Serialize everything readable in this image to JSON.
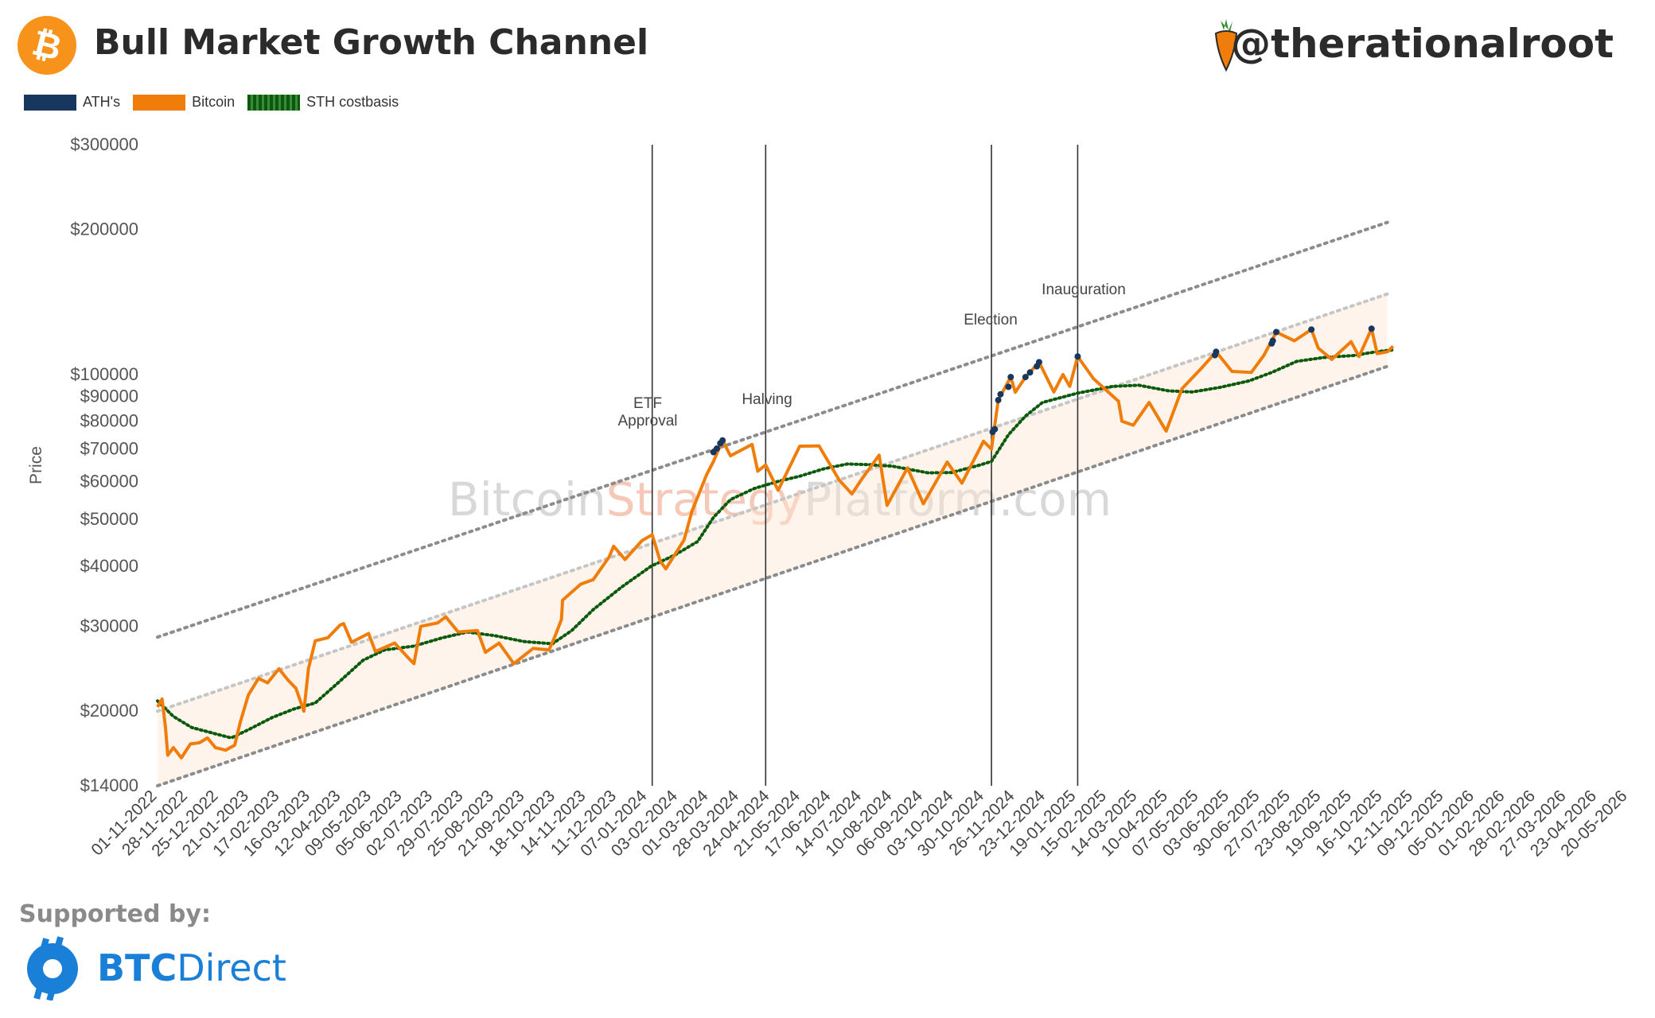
{
  "header": {
    "title": "Bull Market Growth Channel",
    "handle": "@therationalroot",
    "bitcoin_icon": "bitcoin-icon",
    "carrot_icon": "carrot-icon"
  },
  "legend": {
    "items": [
      {
        "label": "ATH's",
        "color": "#17375e",
        "style": "solid"
      },
      {
        "label": "Bitcoin",
        "color": "#f07d0a",
        "style": "solid"
      },
      {
        "label": "STH costbasis",
        "color": "#0b5a0b",
        "style": "dotted"
      }
    ]
  },
  "watermark": {
    "part1": "Bitcoin",
    "part2": "Strategy",
    "part3": "Platform.com"
  },
  "footer": {
    "supported_label": "Supported by:",
    "brand_bold": "BTC",
    "brand_rest": "Direct",
    "brand_icon": "btcdirect-icon",
    "brand_color": "#1a7fd6"
  },
  "chart_data": {
    "type": "line",
    "title": "Bull Market Growth Channel",
    "ylabel": "Price",
    "yscale": "log",
    "ylim": [
      14000,
      300000
    ],
    "xlim": [
      "2022-11-01",
      "2026-05-20"
    ],
    "y_ticks": [
      {
        "value": 14000,
        "label": "$14000"
      },
      {
        "value": 20000,
        "label": "$20000"
      },
      {
        "value": 30000,
        "label": "$30000"
      },
      {
        "value": 40000,
        "label": "$40000"
      },
      {
        "value": 50000,
        "label": "$50000"
      },
      {
        "value": 60000,
        "label": "$60000"
      },
      {
        "value": 70000,
        "label": "$70000"
      },
      {
        "value": 80000,
        "label": "$80000"
      },
      {
        "value": 90000,
        "label": "$90000"
      },
      {
        "value": 100000,
        "label": "$100000"
      },
      {
        "value": 200000,
        "label": "$200000"
      },
      {
        "value": 300000,
        "label": "$300000"
      }
    ],
    "x_ticks": [
      "2022-11-01",
      "2022-11-28",
      "2022-12-25",
      "2023-01-21",
      "2023-02-17",
      "2023-03-16",
      "2023-04-12",
      "2023-05-09",
      "2023-06-05",
      "2023-07-02",
      "2023-07-29",
      "2023-08-25",
      "2023-09-21",
      "2023-10-18",
      "2023-11-14",
      "2023-12-11",
      "2024-01-07",
      "2024-02-03",
      "2024-03-01",
      "2024-03-28",
      "2024-04-24",
      "2024-05-21",
      "2024-06-17",
      "2024-07-14",
      "2024-08-10",
      "2024-09-06",
      "2024-10-03",
      "2024-10-30",
      "2024-11-26",
      "2024-12-23",
      "2025-01-19",
      "2025-02-15",
      "2025-03-14",
      "2025-04-10",
      "2025-05-07",
      "2025-06-03",
      "2025-06-30",
      "2025-07-27",
      "2025-08-23",
      "2025-09-19",
      "2025-10-16",
      "2025-11-12",
      "2025-12-09",
      "2026-01-05",
      "2026-02-01",
      "2026-02-28",
      "2026-03-27",
      "2026-04-23",
      "2026-05-20"
    ],
    "x_tick_labels": [
      "01-11-2022",
      "28-11-2022",
      "25-12-2022",
      "21-01-2023",
      "17-02-2023",
      "16-03-2023",
      "12-04-2023",
      "09-05-2023",
      "05-06-2023",
      "02-07-2023",
      "29-07-2023",
      "25-08-2023",
      "21-09-2023",
      "18-10-2023",
      "14-11-2023",
      "11-12-2023",
      "07-01-2024",
      "03-02-2024",
      "01-03-2024",
      "28-03-2024",
      "24-04-2024",
      "21-05-2024",
      "17-06-2024",
      "14-07-2024",
      "10-08-2024",
      "06-09-2024",
      "03-10-2024",
      "30-10-2024",
      "26-11-2024",
      "23-12-2024",
      "19-01-2025",
      "15-02-2025",
      "14-03-2025",
      "10-04-2025",
      "07-05-2025",
      "03-06-2025",
      "30-06-2025",
      "27-07-2025",
      "23-08-2025",
      "19-09-2025",
      "16-10-2025",
      "12-11-2025",
      "09-12-2025",
      "05-01-2026",
      "01-02-2026",
      "28-02-2026",
      "27-03-2026",
      "23-04-2026",
      "20-05-2026"
    ],
    "events": [
      {
        "date": "2024-01-11",
        "label": "ETF\nApproval"
      },
      {
        "date": "2024-04-20",
        "label": "Halving"
      },
      {
        "date": "2024-11-05",
        "label": "Election"
      },
      {
        "date": "2025-01-20",
        "label": "Inauguration"
      }
    ],
    "channel": {
      "start": "2022-11-01",
      "end": "2025-10-20",
      "upper": [
        28500,
        207000
      ],
      "middle": [
        20000,
        147000
      ],
      "lower": [
        14000,
        104000
      ]
    },
    "series": [
      {
        "name": "Bitcoin",
        "color": "#f07d0a",
        "points": [
          [
            "2022-11-01",
            20400
          ],
          [
            "2022-11-05",
            21200
          ],
          [
            "2022-11-08",
            18500
          ],
          [
            "2022-11-10",
            16200
          ],
          [
            "2022-11-15",
            16800
          ],
          [
            "2022-11-22",
            16000
          ],
          [
            "2022-11-30",
            17100
          ],
          [
            "2022-12-08",
            17200
          ],
          [
            "2022-12-15",
            17600
          ],
          [
            "2022-12-22",
            16800
          ],
          [
            "2022-12-31",
            16600
          ],
          [
            "2023-01-08",
            17000
          ],
          [
            "2023-01-13",
            19000
          ],
          [
            "2023-01-20",
            21600
          ],
          [
            "2023-01-29",
            23400
          ],
          [
            "2023-02-06",
            22900
          ],
          [
            "2023-02-16",
            24500
          ],
          [
            "2023-02-24",
            23200
          ],
          [
            "2023-03-03",
            22300
          ],
          [
            "2023-03-10",
            20000
          ],
          [
            "2023-03-14",
            24500
          ],
          [
            "2023-03-20",
            28000
          ],
          [
            "2023-03-31",
            28400
          ],
          [
            "2023-04-11",
            30200
          ],
          [
            "2023-04-14",
            30400
          ],
          [
            "2023-04-21",
            27800
          ],
          [
            "2023-05-06",
            29000
          ],
          [
            "2023-05-12",
            26600
          ],
          [
            "2023-05-29",
            27700
          ],
          [
            "2023-06-10",
            25800
          ],
          [
            "2023-06-15",
            25100
          ],
          [
            "2023-06-21",
            30000
          ],
          [
            "2023-07-06",
            30500
          ],
          [
            "2023-07-13",
            31400
          ],
          [
            "2023-07-24",
            29200
          ],
          [
            "2023-08-10",
            29400
          ],
          [
            "2023-08-17",
            26500
          ],
          [
            "2023-08-29",
            27700
          ],
          [
            "2023-09-11",
            25100
          ],
          [
            "2023-09-28",
            27000
          ],
          [
            "2023-10-12",
            26800
          ],
          [
            "2023-10-17",
            28500
          ],
          [
            "2023-10-23",
            31000
          ],
          [
            "2023-10-24",
            34000
          ],
          [
            "2023-11-09",
            36700
          ],
          [
            "2023-11-20",
            37500
          ],
          [
            "2023-12-04",
            41800
          ],
          [
            "2023-12-08",
            44000
          ],
          [
            "2023-12-18",
            41300
          ],
          [
            "2024-01-02",
            45200
          ],
          [
            "2024-01-11",
            46500
          ],
          [
            "2024-01-18",
            41000
          ],
          [
            "2024-01-23",
            39500
          ],
          [
            "2024-02-08",
            45300
          ],
          [
            "2024-02-15",
            52000
          ],
          [
            "2024-02-28",
            62000
          ],
          [
            "2024-03-05",
            66000
          ],
          [
            "2024-03-13",
            73000
          ],
          [
            "2024-03-20",
            67800
          ],
          [
            "2024-04-08",
            71600
          ],
          [
            "2024-04-13",
            63000
          ],
          [
            "2024-04-20",
            64900
          ],
          [
            "2024-05-01",
            57500
          ],
          [
            "2024-05-20",
            71000
          ],
          [
            "2024-06-06",
            71100
          ],
          [
            "2024-06-24",
            60300
          ],
          [
            "2024-07-05",
            56500
          ],
          [
            "2024-07-14",
            60800
          ],
          [
            "2024-07-29",
            68000
          ],
          [
            "2024-08-05",
            53500
          ],
          [
            "2024-08-23",
            64000
          ],
          [
            "2024-09-06",
            53900
          ],
          [
            "2024-09-27",
            65800
          ],
          [
            "2024-10-10",
            59500
          ],
          [
            "2024-10-29",
            72700
          ],
          [
            "2024-11-05",
            70000
          ],
          [
            "2024-11-11",
            88500
          ],
          [
            "2024-11-22",
            98800
          ],
          [
            "2024-11-26",
            91900
          ],
          [
            "2024-12-05",
            98800
          ],
          [
            "2024-12-17",
            106100
          ],
          [
            "2024-12-30",
            92000
          ],
          [
            "2025-01-07",
            100000
          ],
          [
            "2025-01-13",
            94500
          ],
          [
            "2025-01-20",
            109000
          ],
          [
            "2025-02-03",
            98000
          ],
          [
            "2025-02-25",
            88000
          ],
          [
            "2025-02-28",
            80000
          ],
          [
            "2025-03-10",
            78500
          ],
          [
            "2025-03-24",
            87500
          ],
          [
            "2025-04-08",
            76300
          ],
          [
            "2025-04-22",
            93500
          ],
          [
            "2025-05-09",
            103000
          ],
          [
            "2025-05-22",
            111500
          ],
          [
            "2025-06-05",
            101500
          ],
          [
            "2025-06-22",
            101000
          ],
          [
            "2025-07-03",
            109500
          ],
          [
            "2025-07-14",
            122500
          ],
          [
            "2025-07-30",
            117500
          ],
          [
            "2025-08-14",
            124000
          ],
          [
            "2025-08-20",
            113500
          ],
          [
            "2025-09-01",
            107500
          ],
          [
            "2025-09-18",
            117000
          ],
          [
            "2025-09-25",
            109000
          ],
          [
            "2025-10-06",
            124500
          ],
          [
            "2025-10-11",
            110500
          ],
          [
            "2025-10-20",
            111500
          ],
          [
            "2025-10-25",
            114500
          ]
        ]
      },
      {
        "name": "STH costbasis",
        "color": "#0b5a0b",
        "points": [
          [
            "2022-11-01",
            21000
          ],
          [
            "2022-11-15",
            19500
          ],
          [
            "2022-12-01",
            18500
          ],
          [
            "2022-12-20",
            18000
          ],
          [
            "2023-01-05",
            17600
          ],
          [
            "2023-01-20",
            18300
          ],
          [
            "2023-02-10",
            19400
          ],
          [
            "2023-03-01",
            20200
          ],
          [
            "2023-03-20",
            20800
          ],
          [
            "2023-04-10",
            23000
          ],
          [
            "2023-05-01",
            25500
          ],
          [
            "2023-05-20",
            26800
          ],
          [
            "2023-06-15",
            27300
          ],
          [
            "2023-07-10",
            28400
          ],
          [
            "2023-08-01",
            29200
          ],
          [
            "2023-08-25",
            28700
          ],
          [
            "2023-09-20",
            27900
          ],
          [
            "2023-10-15",
            27600
          ],
          [
            "2023-11-01",
            29400
          ],
          [
            "2023-11-20",
            32500
          ],
          [
            "2023-12-15",
            36200
          ],
          [
            "2024-01-10",
            40000
          ],
          [
            "2024-01-31",
            42200
          ],
          [
            "2024-02-20",
            45000
          ],
          [
            "2024-03-05",
            50500
          ],
          [
            "2024-03-20",
            55000
          ],
          [
            "2024-04-10",
            58000
          ],
          [
            "2024-05-01",
            60000
          ],
          [
            "2024-05-20",
            61500
          ],
          [
            "2024-06-10",
            63700
          ],
          [
            "2024-07-01",
            65200
          ],
          [
            "2024-07-20",
            65000
          ],
          [
            "2024-08-10",
            64500
          ],
          [
            "2024-09-10",
            62500
          ],
          [
            "2024-10-01",
            62600
          ],
          [
            "2024-10-25",
            64800
          ],
          [
            "2024-11-05",
            66000
          ],
          [
            "2024-11-20",
            75000
          ],
          [
            "2024-12-05",
            82000
          ],
          [
            "2024-12-20",
            87500
          ],
          [
            "2025-01-20",
            91500
          ],
          [
            "2025-02-20",
            94500
          ],
          [
            "2025-03-15",
            95000
          ],
          [
            "2025-04-10",
            92500
          ],
          [
            "2025-05-01",
            92000
          ],
          [
            "2025-05-25",
            94000
          ],
          [
            "2025-06-20",
            97000
          ],
          [
            "2025-07-10",
            101000
          ],
          [
            "2025-08-01",
            106500
          ],
          [
            "2025-08-25",
            108500
          ],
          [
            "2025-09-20",
            109500
          ],
          [
            "2025-10-10",
            111500
          ],
          [
            "2025-10-25",
            112500
          ]
        ]
      },
      {
        "name": "ATH's",
        "color": "#17375e",
        "points": [
          [
            "2024-03-05",
            69000
          ],
          [
            "2024-03-08",
            70200
          ],
          [
            "2024-03-11",
            72000
          ],
          [
            "2024-03-13",
            73000
          ],
          [
            "2024-11-06",
            76000
          ],
          [
            "2024-11-08",
            77000
          ],
          [
            "2024-11-11",
            88500
          ],
          [
            "2024-11-13",
            91000
          ],
          [
            "2024-11-20",
            94300
          ],
          [
            "2024-11-22",
            98800
          ],
          [
            "2024-12-05",
            98800
          ],
          [
            "2024-12-09",
            101000
          ],
          [
            "2024-12-15",
            104000
          ],
          [
            "2024-12-17",
            106100
          ],
          [
            "2025-01-20",
            109000
          ],
          [
            "2025-05-21",
            109700
          ],
          [
            "2025-05-22",
            111500
          ],
          [
            "2025-07-10",
            116000
          ],
          [
            "2025-07-11",
            117500
          ],
          [
            "2025-07-14",
            122500
          ],
          [
            "2025-08-14",
            124000
          ],
          [
            "2025-10-06",
            124500
          ]
        ]
      }
    ]
  }
}
